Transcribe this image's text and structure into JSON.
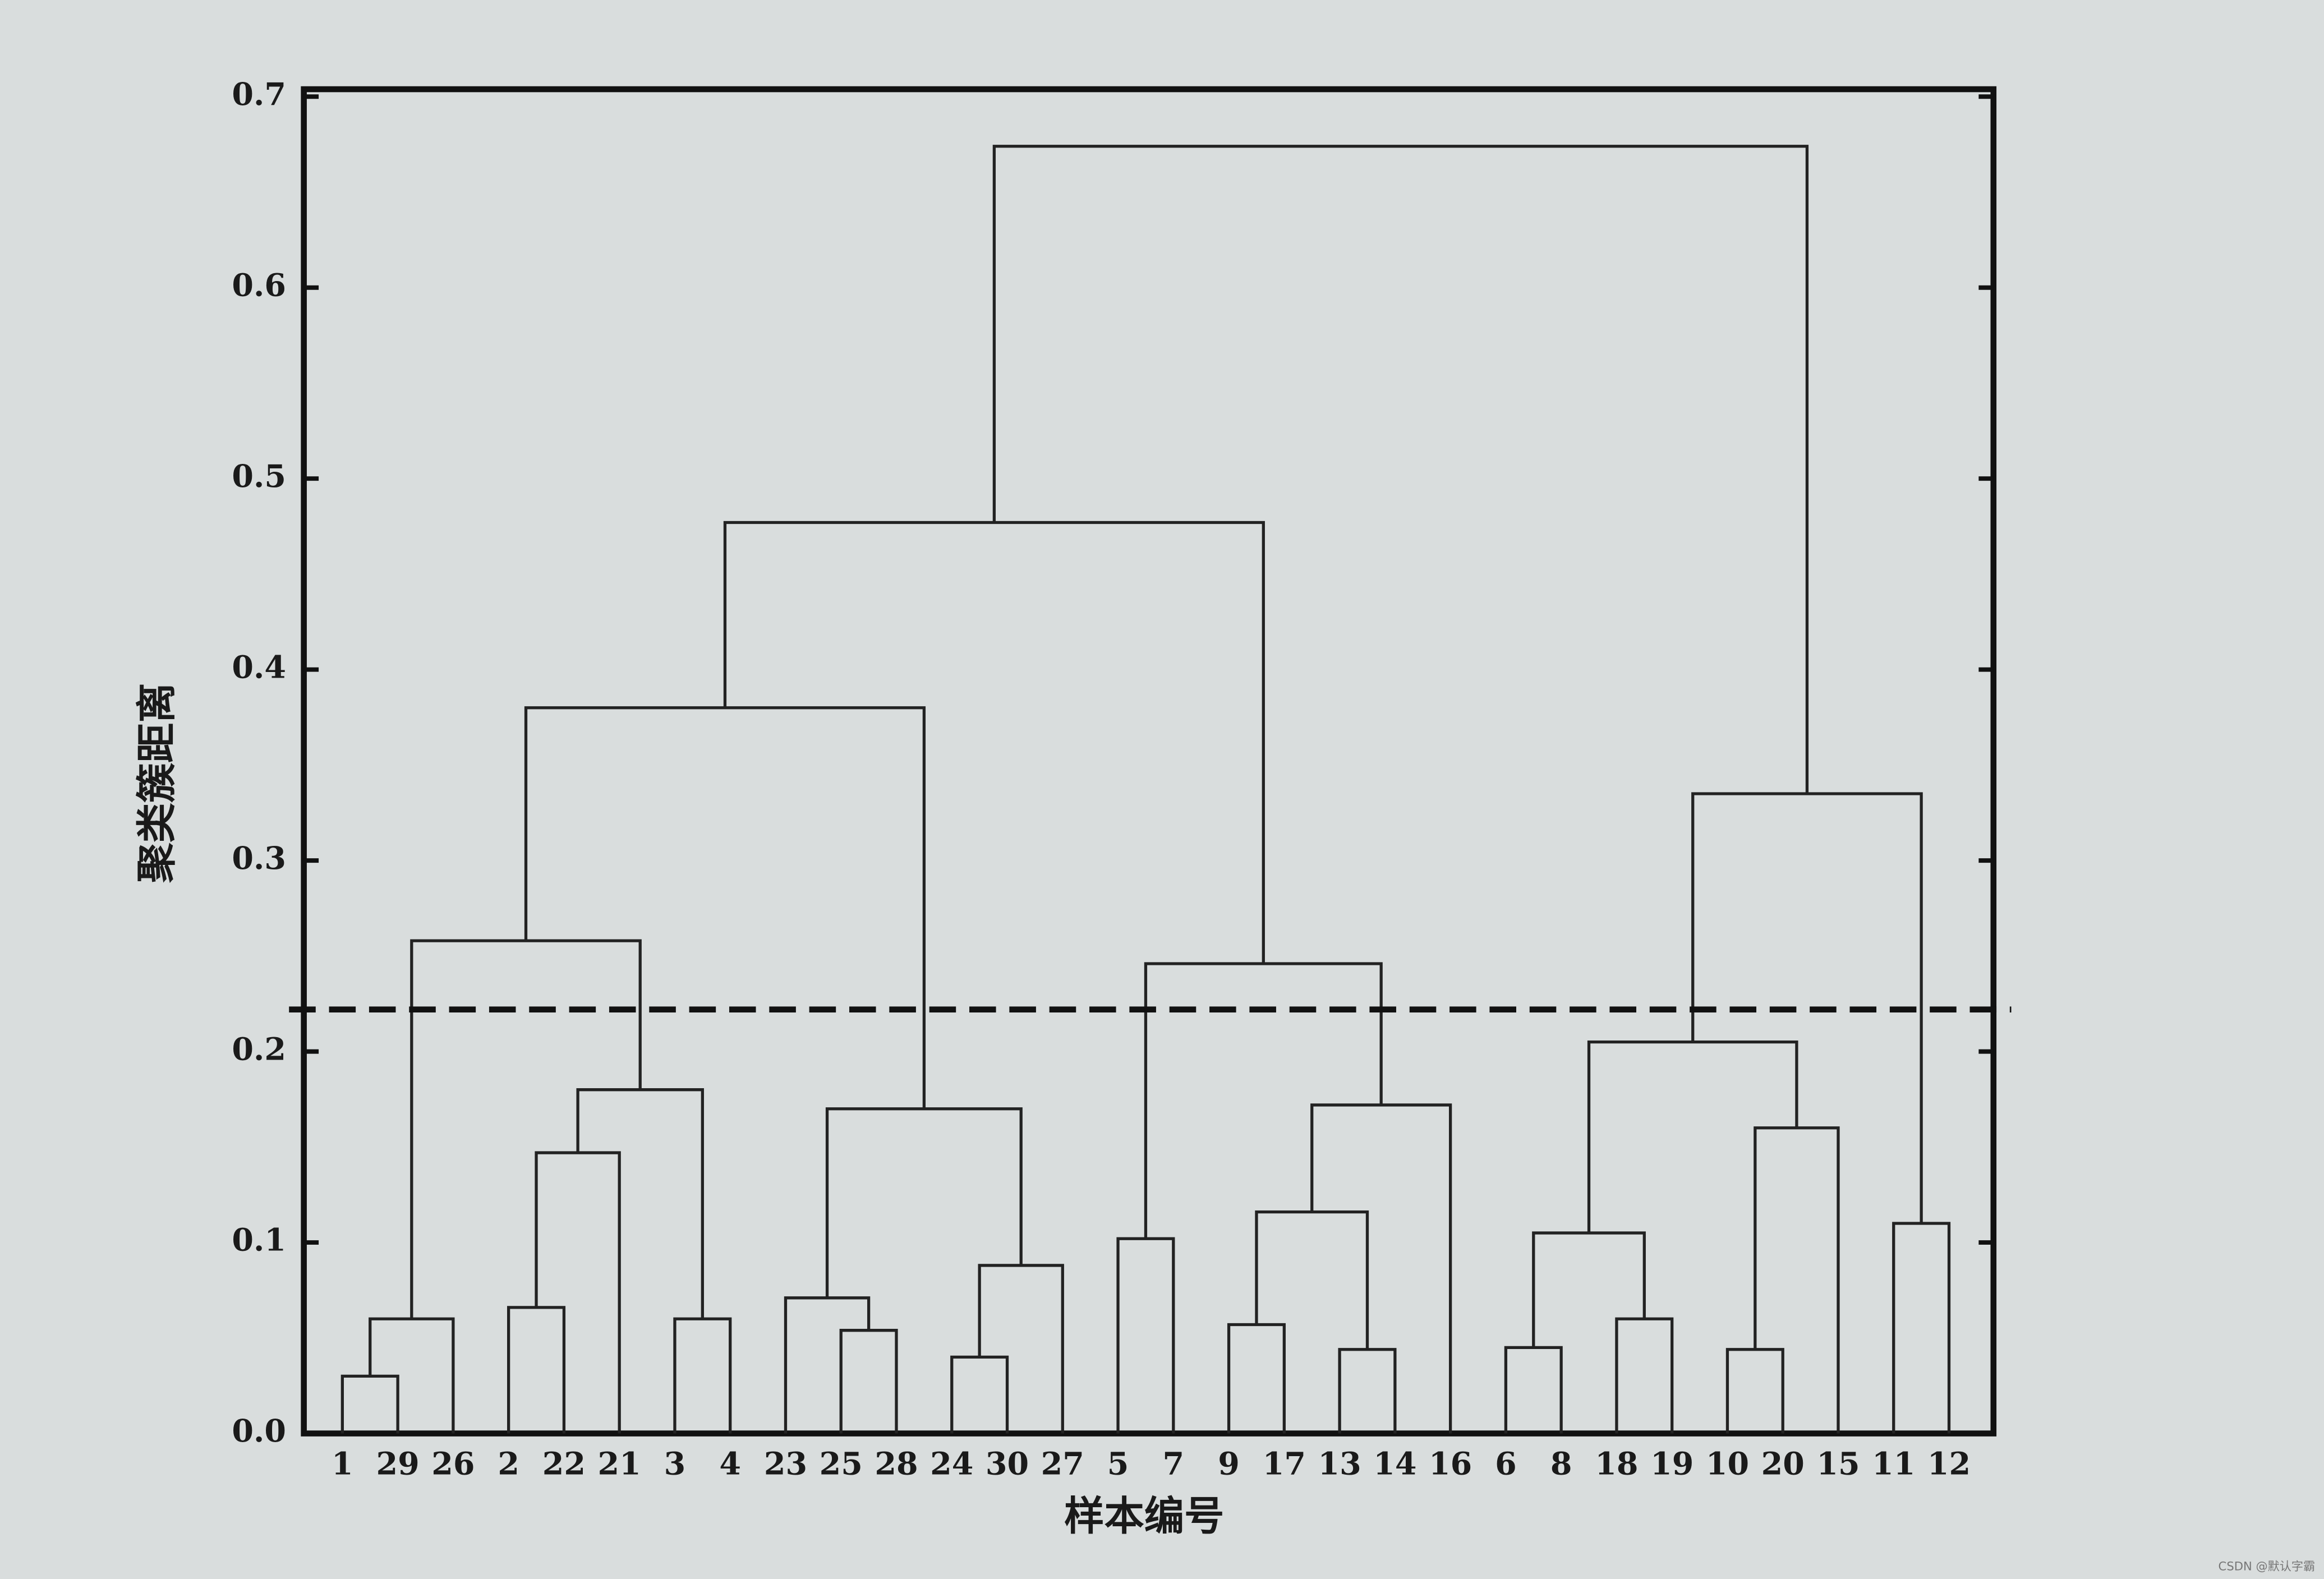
{
  "chart_data": {
    "type": "dendrogram",
    "x_label": "样本编号",
    "y_label": "聚类簇距离",
    "categories": [
      "1",
      "29",
      "26",
      "2",
      "22",
      "21",
      "3",
      "4",
      "23",
      "25",
      "28",
      "24",
      "30",
      "27",
      "5",
      "7",
      "9",
      "17",
      "13",
      "14",
      "16",
      "6",
      "8",
      "18",
      "19",
      "10",
      "20",
      "15",
      "11",
      "12"
    ],
    "merges": [
      [
        0,
        1,
        0.03
      ],
      [
        30,
        2,
        0.06
      ],
      [
        3,
        4,
        0.066
      ],
      [
        32,
        5,
        0.147
      ],
      [
        6,
        7,
        0.06
      ],
      [
        33,
        34,
        0.18
      ],
      [
        31,
        35,
        0.258
      ],
      [
        9,
        10,
        0.054
      ],
      [
        8,
        37,
        0.071
      ],
      [
        11,
        12,
        0.04
      ],
      [
        39,
        13,
        0.088
      ],
      [
        38,
        40,
        0.17
      ],
      [
        36,
        41,
        0.38
      ],
      [
        14,
        15,
        0.102
      ],
      [
        16,
        17,
        0.057
      ],
      [
        18,
        19,
        0.044
      ],
      [
        44,
        45,
        0.116
      ],
      [
        46,
        20,
        0.172
      ],
      [
        43,
        47,
        0.246
      ],
      [
        42,
        48,
        0.477
      ],
      [
        21,
        22,
        0.045
      ],
      [
        23,
        24,
        0.06
      ],
      [
        50,
        51,
        0.105
      ],
      [
        25,
        26,
        0.044
      ],
      [
        53,
        27,
        0.16
      ],
      [
        52,
        54,
        0.205
      ],
      [
        28,
        29,
        0.11
      ],
      [
        55,
        56,
        0.335
      ],
      [
        49,
        57,
        0.674
      ]
    ],
    "threshold": 0.222,
    "ylim": [
      0,
      0.7
    ],
    "yticks": [
      {
        "value": 0,
        "label": "0.0"
      },
      0.1,
      0.2,
      0.3,
      0.4,
      0.5,
      0.6,
      0.7
    ],
    "color": "#222222",
    "watermark": "CSDN @默认字霸"
  }
}
